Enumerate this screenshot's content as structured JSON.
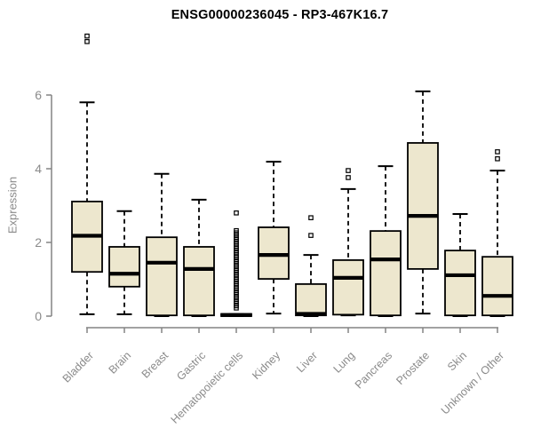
{
  "colors": {
    "background": "#ffffff",
    "box_fill": "#ede7ce",
    "box_border": "#000000",
    "median": "#000000",
    "whisker": "#000000",
    "axis": "#848484",
    "tick_label": "#8a8a8a",
    "title": "#000000"
  },
  "chart_data": {
    "type": "boxplot",
    "title": "ENSG00000236045 - RP3-467K16.7",
    "ylabel": "Expression",
    "xlabel": "",
    "ylim": [
      0,
      6
    ],
    "yticks": [
      0,
      2,
      4,
      6
    ],
    "grid": false,
    "legend": false,
    "categories": [
      "Bladder",
      "Brain",
      "Breast",
      "Gastric",
      "Hematopoietic cells",
      "Kidney",
      "Liver",
      "Lung",
      "Pancreas",
      "Prostate",
      "Skin",
      "Unknown / Other"
    ],
    "series": [
      {
        "name": "Bladder",
        "whisker_low": 0.05,
        "q1": 1.2,
        "median": 2.18,
        "q3": 3.11,
        "whisker_high": 5.8,
        "outliers": [
          7.45,
          7.6
        ]
      },
      {
        "name": "Brain",
        "whisker_low": 0.05,
        "q1": 0.8,
        "median": 1.15,
        "q3": 1.88,
        "whisker_high": 2.85,
        "outliers": []
      },
      {
        "name": "Breast",
        "whisker_low": 0.0,
        "q1": 0.02,
        "median": 1.45,
        "q3": 2.14,
        "whisker_high": 3.86,
        "outliers": []
      },
      {
        "name": "Gastric",
        "whisker_low": 0.0,
        "q1": 0.02,
        "median": 1.28,
        "q3": 1.88,
        "whisker_high": 3.16,
        "outliers": []
      },
      {
        "name": "Hematopoietic cells",
        "whisker_low": 0.0,
        "q1": 0.0,
        "median": 0.03,
        "q3": 0.06,
        "whisker_high": 0.06,
        "outliers": [
          2.8,
          2.32,
          2.26,
          2.2,
          2.14,
          2.08,
          2.02,
          1.96,
          1.9,
          1.84,
          1.78,
          1.72,
          1.66,
          1.6,
          1.54,
          1.48,
          1.42,
          1.36,
          1.3,
          1.24,
          1.18,
          1.12,
          1.06,
          1.0,
          0.94,
          0.88,
          0.82,
          0.76,
          0.7,
          0.64,
          0.58,
          0.52,
          0.46,
          0.4,
          0.34,
          0.28,
          0.22
        ]
      },
      {
        "name": "Kidney",
        "whisker_low": 0.07,
        "q1": 1.01,
        "median": 1.66,
        "q3": 2.41,
        "whisker_high": 4.19,
        "outliers": []
      },
      {
        "name": "Liver",
        "whisker_low": 0.0,
        "q1": 0.02,
        "median": 0.06,
        "q3": 0.87,
        "whisker_high": 1.66,
        "outliers": [
          2.19,
          2.67
        ]
      },
      {
        "name": "Lung",
        "whisker_low": 0.02,
        "q1": 0.04,
        "median": 1.04,
        "q3": 1.52,
        "whisker_high": 3.45,
        "outliers": [
          3.76,
          3.95
        ]
      },
      {
        "name": "Pancreas",
        "whisker_low": 0.0,
        "q1": 0.02,
        "median": 1.54,
        "q3": 2.31,
        "whisker_high": 4.07,
        "outliers": []
      },
      {
        "name": "Prostate",
        "whisker_low": 0.07,
        "q1": 1.28,
        "median": 2.72,
        "q3": 4.7,
        "whisker_high": 6.1,
        "outliers": []
      },
      {
        "name": "Skin",
        "whisker_low": 0.0,
        "q1": 0.02,
        "median": 1.11,
        "q3": 1.78,
        "whisker_high": 2.77,
        "outliers": []
      },
      {
        "name": "Unknown / Other",
        "whisker_low": 0.0,
        "q1": 0.02,
        "median": 0.55,
        "q3": 1.61,
        "whisker_high": 3.95,
        "outliers": [
          4.27,
          4.46
        ]
      }
    ]
  }
}
